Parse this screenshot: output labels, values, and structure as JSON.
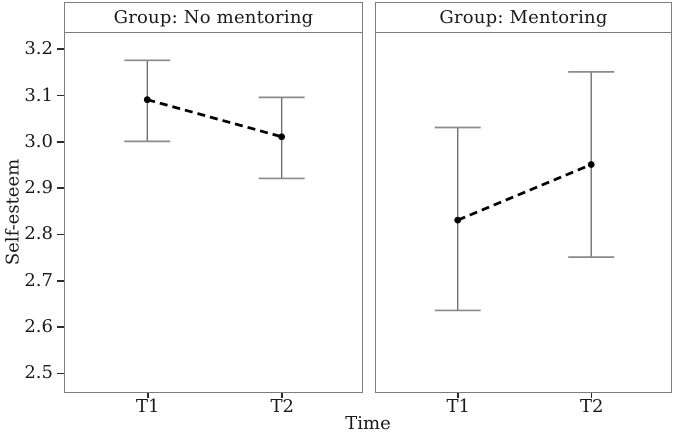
{
  "chart_data": {
    "type": "line",
    "subtype": "faceted-means-with-error-bars",
    "xlabel": "Time",
    "ylabel": "Self-esteem",
    "x_categories": [
      "T1",
      "T2"
    ],
    "yticks": [
      3.2,
      3.1,
      3.0,
      2.9,
      2.8,
      2.7,
      2.6,
      2.5
    ],
    "ylim": [
      2.461,
      3.234
    ],
    "grid": false,
    "legend": "none",
    "line_style": "dashed",
    "facets": [
      {
        "title": "Group: No mentoring",
        "series": [
          {
            "x": "T1",
            "y": 3.09,
            "err_low": 3.0,
            "err_high": 3.175
          },
          {
            "x": "T2",
            "y": 3.01,
            "err_low": 2.92,
            "err_high": 3.095
          }
        ]
      },
      {
        "title": "Group: Mentoring",
        "series": [
          {
            "x": "T1",
            "y": 2.83,
            "err_low": 2.635,
            "err_high": 3.03
          },
          {
            "x": "T2",
            "y": 2.95,
            "err_low": 2.75,
            "err_high": 3.15
          }
        ]
      }
    ],
    "colors": {
      "line": "#000000",
      "point": "#000000",
      "error_bar_line": "#666666",
      "error_bar_cap": "#8a8a8a",
      "panel_border": "#7d7d7d",
      "tick": "#2b2b2b",
      "text": "#1a1a1a",
      "background": "#ffffff"
    }
  }
}
